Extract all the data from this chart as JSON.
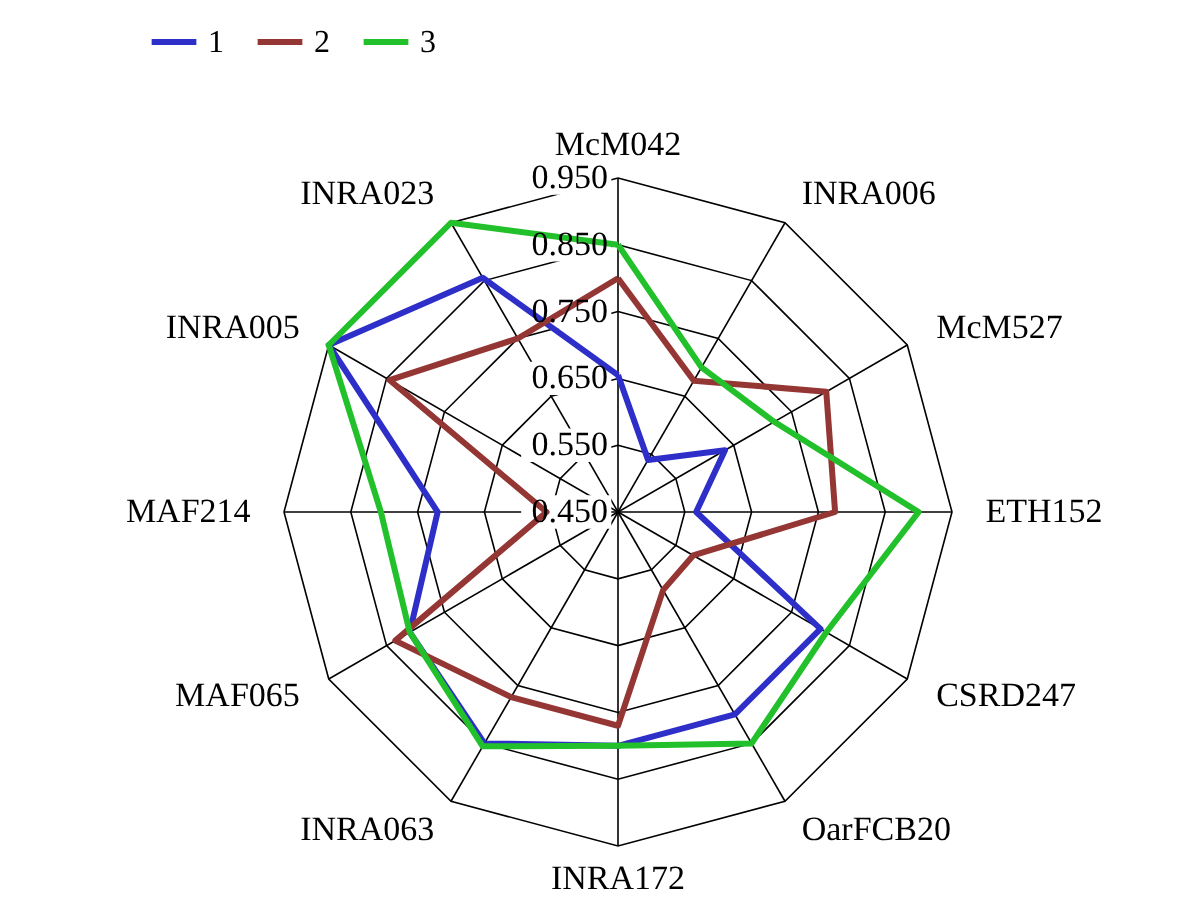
{
  "chart_data": {
    "type": "radar",
    "categories": [
      "McM042",
      "INRA006",
      "McM527",
      "ETH152",
      "CSRD247",
      "OarFCB20",
      "INRA172",
      "INRA063",
      "MAF065",
      "MAF214",
      "INRA005",
      "INRA023"
    ],
    "series": [
      {
        "name": "1",
        "color": "#2e2ec8",
        "values": [
          0.655,
          0.54,
          0.635,
          0.567,
          0.8,
          0.8,
          0.8,
          0.85,
          0.81,
          0.72,
          0.95,
          0.855
        ]
      },
      {
        "name": "2",
        "color": "#943634",
        "values": [
          0.8,
          0.677,
          0.81,
          0.775,
          0.58,
          0.585,
          0.77,
          0.77,
          0.835,
          0.557,
          0.845,
          0.75
        ]
      },
      {
        "name": "3",
        "color": "#22c02a",
        "values": [
          0.85,
          0.7,
          0.72,
          0.9,
          0.81,
          0.85,
          0.8,
          0.855,
          0.81,
          0.805,
          0.95,
          0.95
        ]
      }
    ],
    "ylim": [
      0.45,
      0.95
    ],
    "yticks": [
      {
        "value": 0.45,
        "label": "0.450"
      },
      {
        "value": 0.55,
        "label": "0.550"
      },
      {
        "value": 0.65,
        "label": "0.650"
      },
      {
        "value": 0.75,
        "label": "0.750"
      },
      {
        "value": 0.85,
        "label": "0.850"
      },
      {
        "value": 0.95,
        "label": "0.950"
      }
    ],
    "legend": "top",
    "line_style": "solid",
    "marker": "none"
  }
}
